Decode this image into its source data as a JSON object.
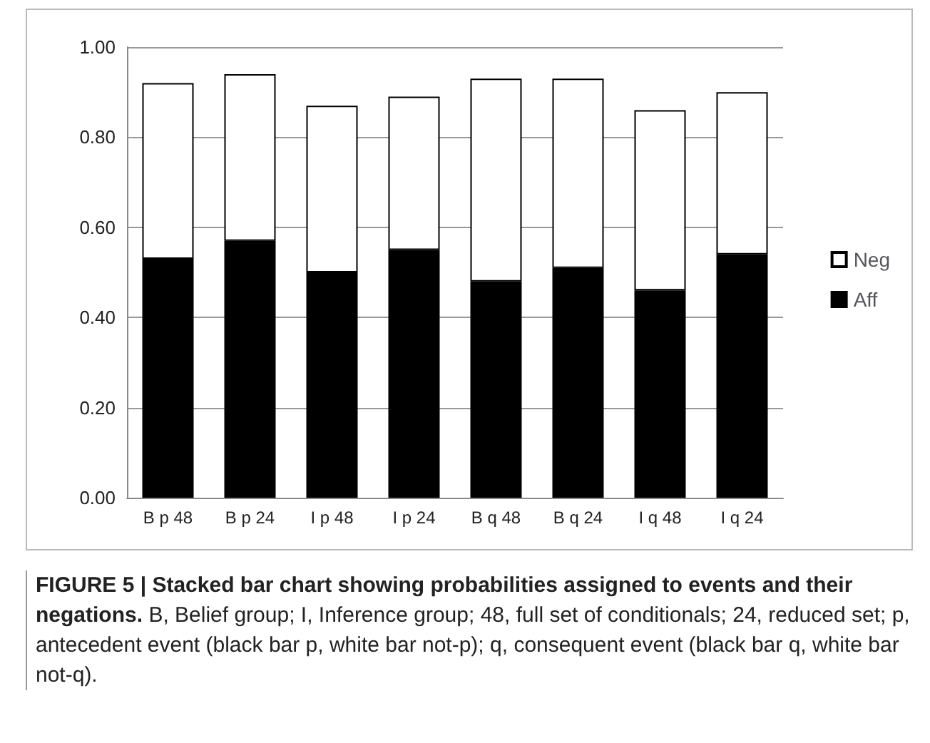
{
  "chart_data": {
    "type": "bar",
    "stacked": true,
    "title": "FIGURE 5 | Stacked bar chart showing probabilities assigned to events and their negations.",
    "annotations": [
      "B, Belief group; I, Inference group; 48, full set of conditionals; 24, reduced set; p, antecedent event (black bar p, white bar not-p); q, consequent event (black bar q, white bar not-q)."
    ],
    "categories": [
      "B p 48",
      "B p 24",
      "I p 48",
      "I p 24",
      "B q 48",
      "B q 24",
      "I q 48",
      "I q 24"
    ],
    "series": [
      {
        "name": "Aff",
        "color": "#000000",
        "values": [
          0.53,
          0.57,
          0.5,
          0.55,
          0.48,
          0.51,
          0.46,
          0.54
        ]
      },
      {
        "name": "Neg",
        "color": "#ffffff",
        "values": [
          0.39,
          0.37,
          0.37,
          0.34,
          0.45,
          0.42,
          0.4,
          0.36
        ]
      }
    ],
    "ylim": [
      0,
      1
    ],
    "yticks": [
      {
        "value": 0,
        "label": "0.00"
      },
      {
        "value": 0.2,
        "label": "0.20"
      },
      {
        "value": 0.4,
        "label": "0.40"
      },
      {
        "value": 0.6,
        "label": "0.60"
      },
      {
        "value": 0.8,
        "label": "0.80"
      },
      {
        "value": 1,
        "label": "1.00"
      }
    ],
    "grid": "y",
    "legend": "right"
  }
}
